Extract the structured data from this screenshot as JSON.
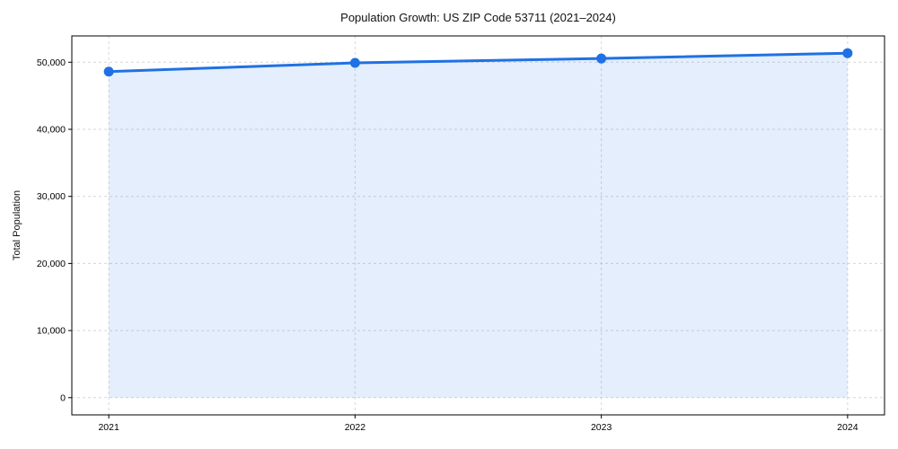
{
  "chart_data": {
    "type": "line",
    "area_fill": true,
    "title": "Population Growth: US ZIP Code 53711 (2021–2024)",
    "categories": [
      "2021",
      "2022",
      "2023",
      "2024"
    ],
    "values": [
      48600,
      49900,
      50550,
      51350
    ],
    "xlabel": "",
    "ylabel": "Total Population",
    "yticks": [
      0,
      10000,
      20000,
      30000,
      40000,
      50000
    ],
    "ylim": [
      -2570,
      53920
    ],
    "grid": "dashed",
    "legend": "none",
    "marker": "circle"
  },
  "colors": {
    "line": "#2071e3",
    "marker": "#2071e3",
    "area_fill": "rgba(32,113,227,0.12)",
    "grid": "#d7d7d7",
    "spine": "#000000",
    "text": "#000000",
    "background": "#ffffff"
  }
}
